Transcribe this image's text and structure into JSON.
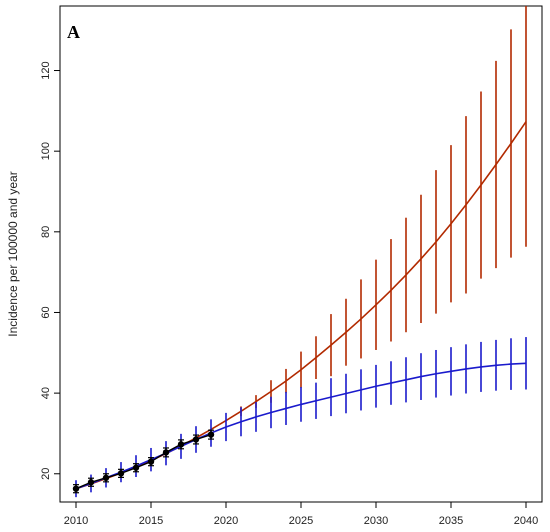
{
  "chart_data": {
    "type": "line",
    "panel_label": "A",
    "title": "",
    "xlabel": "",
    "ylabel": "Incidence per 100000 and year",
    "xlim": [
      2010,
      2040
    ],
    "ylim": [
      13,
      136
    ],
    "xticks": [
      2010,
      2015,
      2020,
      2025,
      2030,
      2035,
      2040
    ],
    "yticks": [
      20,
      40,
      60,
      80,
      100,
      120
    ],
    "grid": false,
    "legend": "none",
    "colors": {
      "series_1": "#b22a00",
      "series_2": "#1a1acc",
      "observed": "#000000"
    },
    "observed": {
      "x": [
        2010,
        2011,
        2012,
        2013,
        2014,
        2015,
        2016,
        2017,
        2018,
        2019
      ],
      "y": [
        16.3,
        17.9,
        19.0,
        20.1,
        21.5,
        23.0,
        25.3,
        27.3,
        28.5,
        29.7
      ],
      "lower": [
        15.3,
        16.9,
        18.0,
        19.1,
        20.5,
        22.0,
        24.2,
        26.2,
        27.4,
        28.6
      ],
      "upper": [
        17.3,
        18.9,
        20.0,
        21.1,
        22.5,
        24.0,
        26.4,
        28.4,
        29.6,
        30.8
      ]
    },
    "series": [
      {
        "x": [
          2010,
          2011,
          2012,
          2013,
          2014,
          2015,
          2016,
          2017,
          2018,
          2019,
          2020,
          2021,
          2022,
          2023,
          2024,
          2025,
          2026,
          2027,
          2028,
          2029,
          2030,
          2031,
          2032,
          2033,
          2034,
          2035,
          2036,
          2037,
          2038,
          2039,
          2040
        ],
        "values": [
          16.3,
          17.5,
          18.8,
          20.2,
          21.7,
          23.3,
          25.0,
          26.9,
          28.9,
          31.0,
          33.2,
          35.5,
          37.9,
          40.4,
          43.0,
          45.8,
          48.8,
          51.9,
          55.1,
          58.4,
          61.9,
          65.5,
          69.3,
          73.3,
          77.5,
          82.0,
          86.7,
          91.6,
          96.7,
          101.9,
          107.3
        ],
        "lower": [
          16.3,
          17.5,
          18.8,
          20.2,
          21.7,
          23.3,
          25.0,
          26.9,
          28.9,
          31.0,
          33.2,
          34.3,
          36.3,
          37.6,
          40.0,
          41.3,
          43.5,
          44.2,
          46.8,
          48.6,
          50.7,
          52.8,
          55.1,
          57.4,
          59.7,
          62.5,
          64.7,
          68.4,
          71.0,
          73.6,
          76.3
        ],
        "upper": [
          16.3,
          17.5,
          18.8,
          20.2,
          21.7,
          23.3,
          25.0,
          26.9,
          28.9,
          31.0,
          33.2,
          36.7,
          39.5,
          43.2,
          46.0,
          50.3,
          54.1,
          59.6,
          63.4,
          68.2,
          73.1,
          78.2,
          83.5,
          89.2,
          95.3,
          101.5,
          108.7,
          114.8,
          122.4,
          130.2,
          138.3
        ]
      },
      {
        "x": [
          2010,
          2011,
          2012,
          2013,
          2014,
          2015,
          2016,
          2017,
          2018,
          2019,
          2020,
          2021,
          2022,
          2023,
          2024,
          2025,
          2026,
          2027,
          2028,
          2029,
          2030,
          2031,
          2032,
          2033,
          2034,
          2035,
          2036,
          2037,
          2038,
          2039,
          2040
        ],
        "values": [
          16.3,
          17.6,
          19.0,
          20.4,
          21.9,
          23.5,
          25.1,
          26.8,
          28.5,
          30.1,
          31.6,
          32.9,
          34.1,
          35.2,
          36.2,
          37.2,
          38.1,
          39.0,
          39.9,
          40.8,
          41.7,
          42.5,
          43.3,
          44.1,
          44.8,
          45.4,
          46.0,
          46.5,
          46.9,
          47.2,
          47.4
        ],
        "lower": [
          14.2,
          15.4,
          16.6,
          17.9,
          19.2,
          20.6,
          22.1,
          23.7,
          25.2,
          26.7,
          28.1,
          29.3,
          30.4,
          31.3,
          32.1,
          32.9,
          33.6,
          34.3,
          35.0,
          35.7,
          36.4,
          37.1,
          37.7,
          38.3,
          38.9,
          39.4,
          39.9,
          40.3,
          40.6,
          40.8,
          40.9
        ],
        "upper": [
          18.4,
          19.8,
          21.4,
          22.9,
          24.6,
          26.4,
          28.1,
          29.9,
          31.8,
          33.5,
          35.1,
          36.5,
          37.8,
          39.1,
          40.3,
          41.5,
          42.6,
          43.7,
          44.8,
          45.9,
          47.0,
          47.9,
          48.9,
          49.9,
          50.7,
          51.4,
          52.1,
          52.7,
          53.2,
          53.6,
          53.9
        ]
      }
    ]
  }
}
